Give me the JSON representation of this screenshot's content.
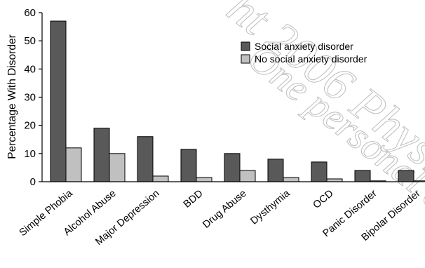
{
  "chart_data": {
    "type": "bar",
    "ylabel": "Percentage With Disorder",
    "ylim": [
      0,
      60
    ],
    "yticks": [
      0,
      10,
      20,
      30,
      40,
      50,
      60
    ],
    "categories": [
      "Simple Phobia",
      "Alcohol Abuse",
      "Major Depression",
      "BDD",
      "Drug Abuse",
      "Dysthymia",
      "OCD",
      "Panic Disorder",
      "Bipolar Disorder"
    ],
    "series": [
      {
        "name": "Social anxiety disorder",
        "color": "#595959",
        "values": [
          57,
          19,
          16,
          11.5,
          10,
          8,
          7,
          4,
          4
        ]
      },
      {
        "name": "No social anxiety disorder",
        "color": "#c0c0c0",
        "values": [
          12,
          10,
          2,
          1.5,
          4,
          1.5,
          1,
          0.3,
          0.3
        ]
      }
    ],
    "legend_position": "top-right",
    "grid": false
  },
  "watermark": {
    "line1": "ht 2006 Physi",
    "line2": "One personal co"
  }
}
